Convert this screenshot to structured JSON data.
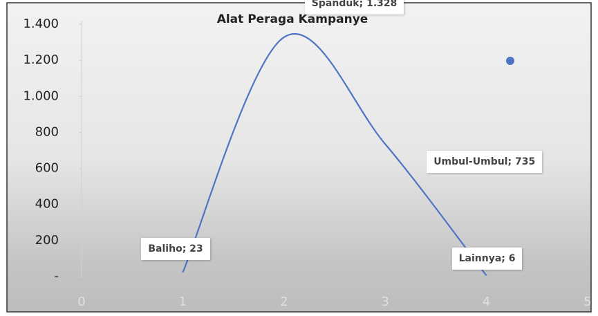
{
  "chart_data": {
    "type": "line",
    "title": "Alat Peraga Kampanye",
    "x": [
      1,
      2,
      3,
      4
    ],
    "values": [
      23,
      1328,
      735,
      6
    ],
    "value_labels": [
      "Baliho; 23",
      "Spanduk; 1.328",
      "Umbul-Umbul; 735",
      "Lainnya; 6"
    ],
    "color": "#4f74c4",
    "smooth": true,
    "xlim": [
      0,
      5
    ],
    "xticks": [
      0,
      1,
      2,
      3,
      4,
      5
    ],
    "ylim": [
      0,
      1400
    ],
    "yticks": [
      {
        "value": 0,
        "label": "-"
      },
      200,
      400,
      600,
      800,
      {
        "value": 1000,
        "label": "1.000"
      },
      {
        "value": 1200,
        "label": "1.200"
      },
      {
        "value": 1400,
        "label": "1.400"
      }
    ]
  }
}
